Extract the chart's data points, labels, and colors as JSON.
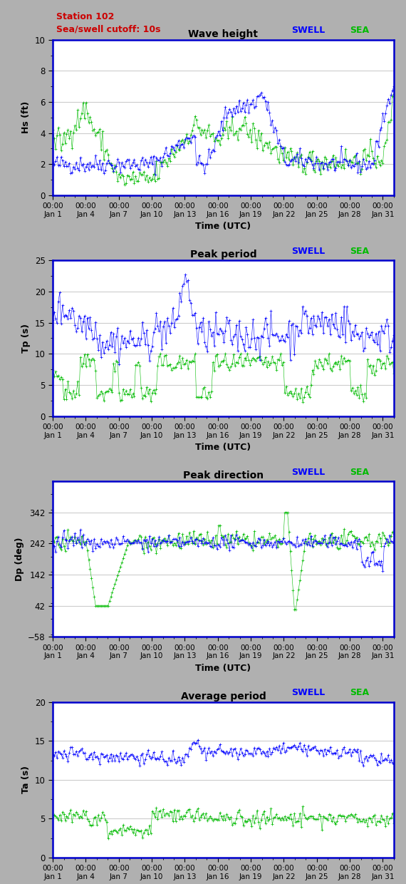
{
  "title_main_color": "#cc0000",
  "bg_color": "#b0b0b0",
  "plot_bg_color": "#ffffff",
  "border_color": "#0000cc",
  "swell_color": "#0000ff",
  "sea_color": "#00bb00",
  "panels": [
    {
      "title": "Wave height",
      "ylabel": "Hs (ft)",
      "ylim": [
        0,
        10
      ],
      "yticks": [
        0,
        2,
        4,
        6,
        8,
        10
      ],
      "yminor": 1
    },
    {
      "title": "Peak period",
      "ylabel": "Tp (s)",
      "ylim": [
        0,
        25
      ],
      "yticks": [
        0,
        5,
        10,
        15,
        20,
        25
      ],
      "yminor": 2.5
    },
    {
      "title": "Peak direction",
      "ylabel": "Dp (deg)",
      "ylim": [
        -58,
        442
      ],
      "yticks": [
        -58,
        42,
        142,
        242,
        342
      ],
      "yminor": 50
    },
    {
      "title": "Average period",
      "ylabel": "Ta (s)",
      "ylim": [
        0,
        20
      ],
      "yticks": [
        0,
        5,
        10,
        15,
        20
      ],
      "yminor": 2.5
    }
  ],
  "xtick_positions": [
    0,
    3,
    6,
    9,
    12,
    15,
    18,
    21,
    24,
    27,
    30
  ],
  "xtick_labels": [
    "00:00\nJan 1",
    "00:00\nJan 4",
    "00:00\nJan 7",
    "00:00\nJan 10",
    "00:00\nJan 13",
    "00:00\nJan 16",
    "00:00\nJan 19",
    "00:00\nJan 22",
    "00:00\nJan 25",
    "00:00\nJan 28",
    "00:00\nJan 31"
  ],
  "xlabel": "Time (UTC)",
  "seed": 42
}
